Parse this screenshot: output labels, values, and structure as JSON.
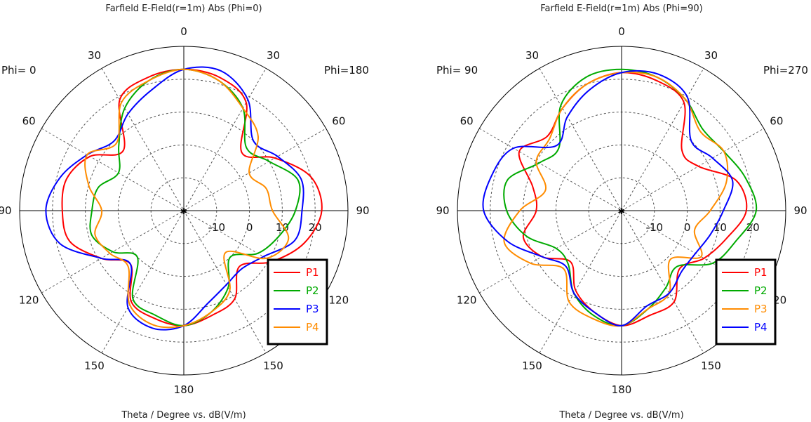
{
  "chart_data": [
    {
      "type": "polar-line",
      "title": "Farfield E-Field(r=1m) Abs (Phi=0)",
      "xlabel": "Theta / Degree vs. dB(V/m)",
      "phi_left": "Phi=  0",
      "phi_right": "Phi=180",
      "angle_ticks": [
        "0",
        "30",
        "60",
        "90",
        "120",
        "150",
        "180",
        "150",
        "120",
        "90",
        "60",
        "30"
      ],
      "radial_ticks": [
        "-10",
        "0",
        "10",
        "20"
      ],
      "rlim": [
        -20,
        30
      ],
      "grid": true,
      "legend_position": "bottom-right",
      "angles": [
        -180,
        -165,
        -150,
        -135,
        -120,
        -105,
        -90,
        -75,
        -60,
        -45,
        -30,
        -15,
        0,
        15,
        30,
        45,
        60,
        75,
        90,
        105,
        120,
        135,
        150,
        165,
        180
      ],
      "series": [
        {
          "name": "P1",
          "color": "#ff0000",
          "values": [
            15,
            14,
            12,
            3,
            9,
            16,
            17,
            17,
            13,
            6,
            19,
            22,
            23,
            22,
            18,
            5,
            12,
            20,
            22,
            18,
            11,
            4,
            11,
            13,
            15
          ]
        },
        {
          "name": "P2",
          "color": "#00aa00",
          "values": [
            15,
            13,
            11,
            0,
            5,
            9,
            8,
            7,
            3,
            8,
            16,
            21,
            23,
            21,
            16,
            7,
            10,
            16,
            14,
            10,
            6,
            0,
            7,
            12,
            15
          ]
        },
        {
          "name": "P3",
          "color": "#0000ff",
          "values": [
            15,
            17,
            14,
            3,
            9,
            19,
            22,
            19,
            14,
            10,
            14,
            18,
            23,
            24,
            19,
            10,
            13,
            17,
            16,
            15,
            8,
            5,
            6,
            9,
            15
          ]
        },
        {
          "name": "P4",
          "color": "#ff8c00",
          "values": [
            15,
            16,
            13,
            4,
            6,
            8,
            5,
            10,
            14,
            9,
            18,
            21,
            23,
            21,
            16,
            12,
            3,
            6,
            7,
            13,
            9,
            -2,
            8,
            12,
            15
          ]
        }
      ]
    },
    {
      "type": "polar-line",
      "title": "Farfield E-Field(r=1m) Abs (Phi=90)",
      "xlabel": "Theta / Degree vs. dB(V/m)",
      "phi_left": "Phi= 90",
      "phi_right": "Phi=270",
      "angle_ticks": [
        "0",
        "30",
        "60",
        "90",
        "120",
        "150",
        "180",
        "150",
        "120",
        "90",
        "60",
        "30"
      ],
      "radial_ticks": [
        "-10",
        "0",
        "10",
        "20"
      ],
      "rlim": [
        -20,
        30
      ],
      "grid": true,
      "legend_position": "bottom-right",
      "angles": [
        -180,
        -165,
        -150,
        -135,
        -120,
        -105,
        -90,
        -75,
        -60,
        -45,
        -30,
        -15,
        0,
        15,
        30,
        45,
        60,
        75,
        90,
        105,
        120,
        135,
        150,
        165,
        180
      ],
      "series": [
        {
          "name": "P1",
          "color": "#ff0000",
          "values": [
            15,
            12,
            8,
            2,
            8,
            11,
            6,
            8,
            16,
            12,
            16,
            20,
            22,
            21,
            18,
            6,
            7,
            16,
            18,
            13,
            9,
            5,
            12,
            13,
            15
          ]
        },
        {
          "name": "P2",
          "color": "#00aa00",
          "values": [
            15,
            13,
            9,
            3,
            3,
            10,
            15,
            16,
            9,
            7,
            17,
            22,
            23,
            22,
            19,
            15,
            16,
            19,
            21,
            16,
            12,
            4,
            7,
            11,
            15
          ]
        },
        {
          "name": "P3",
          "color": "#ff8c00",
          "values": [
            15,
            14,
            12,
            5,
            12,
            17,
            11,
            4,
            10,
            11,
            16,
            20,
            22,
            22,
            19,
            14,
            16,
            13,
            7,
            3,
            8,
            1,
            9,
            11,
            15
          ]
        },
        {
          "name": "P4",
          "color": "#0000ff",
          "values": [
            15,
            12,
            9,
            4,
            8,
            16,
            22,
            21,
            18,
            8,
            13,
            18,
            22,
            23,
            20,
            10,
            12,
            15,
            11,
            8,
            6,
            6,
            9,
            10,
            15
          ]
        }
      ]
    }
  ]
}
